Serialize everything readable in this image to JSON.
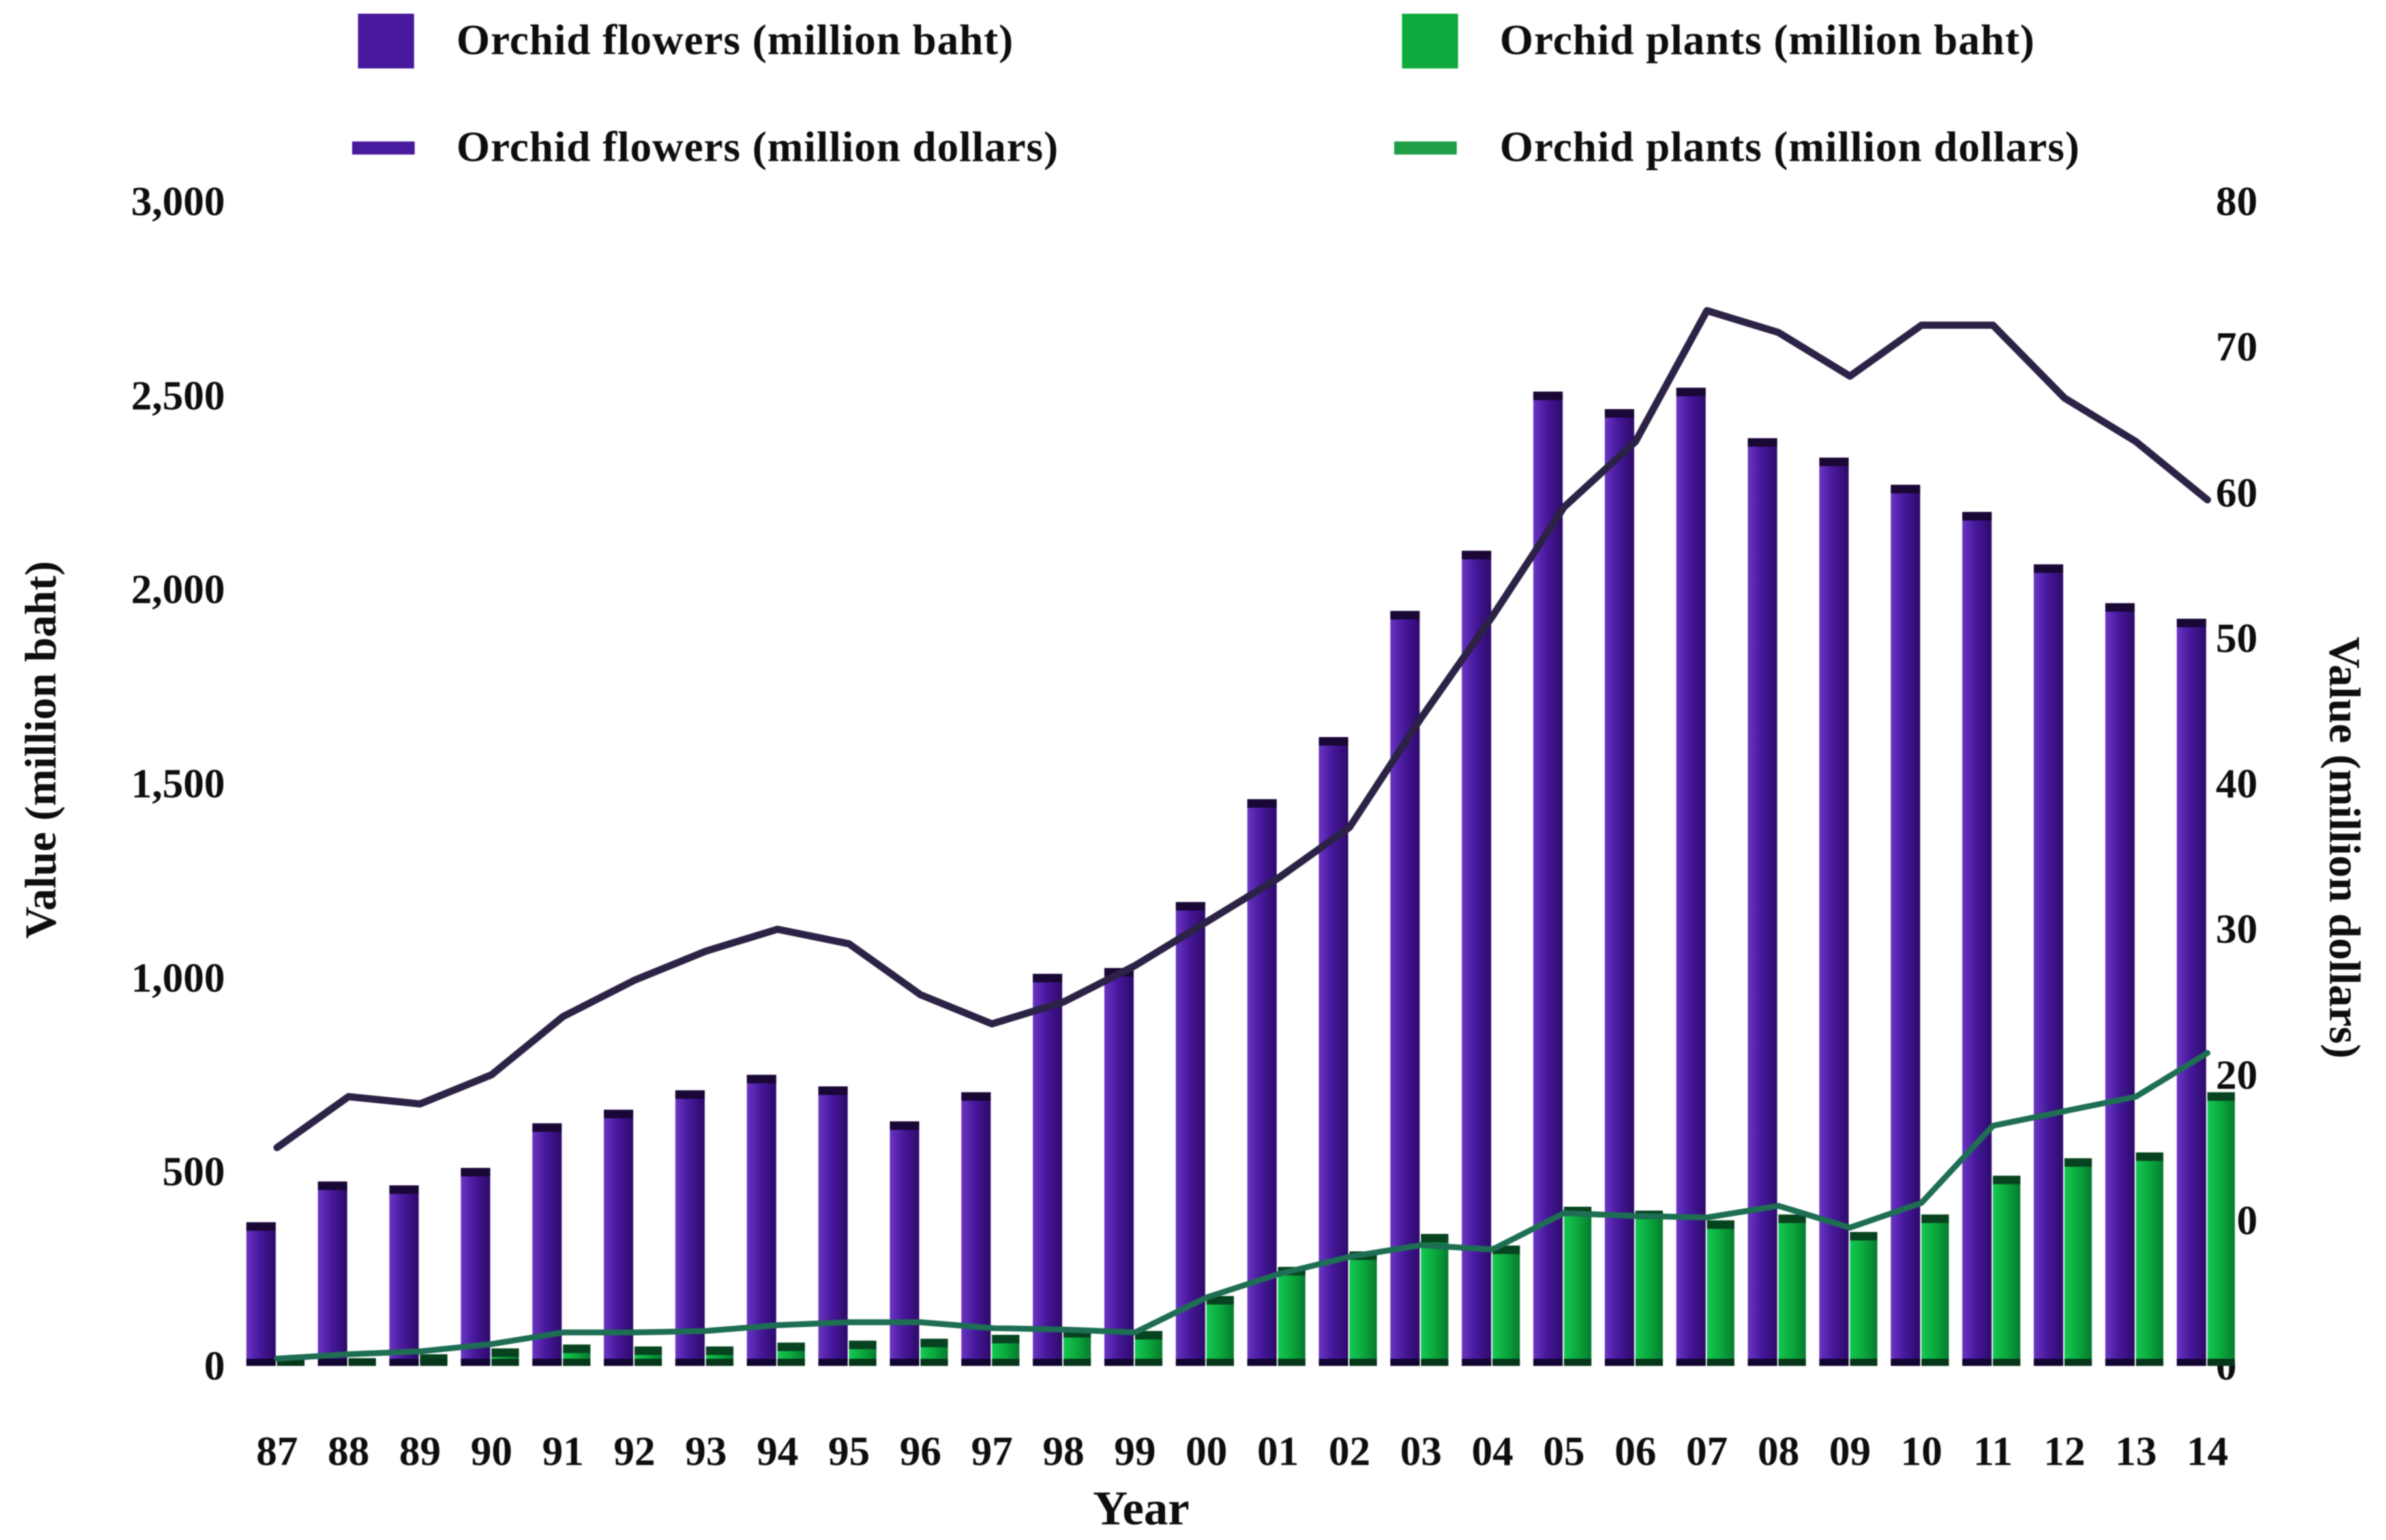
{
  "chart_data": {
    "type": "combo-bar-line",
    "title": "",
    "categories": [
      "87",
      "88",
      "89",
      "90",
      "91",
      "92",
      "93",
      "94",
      "95",
      "96",
      "97",
      "98",
      "99",
      "00",
      "01",
      "02",
      "03",
      "04",
      "05",
      "06",
      "07",
      "08",
      "09",
      "10",
      "11",
      "12",
      "13",
      "14"
    ],
    "series": [
      {
        "name": "Orchid flowers (million baht)",
        "type": "bar",
        "axis": "left",
        "color": "#47189c",
        "values": [
          370,
          475,
          465,
          510,
          625,
          660,
          710,
          750,
          720,
          630,
          705,
          1010,
          1025,
          1195,
          1460,
          1620,
          1945,
          2100,
          2510,
          2465,
          2520,
          2390,
          2340,
          2270,
          2200,
          2065,
          1965,
          1925
        ]
      },
      {
        "name": "Orchid plants (million baht)",
        "type": "bar",
        "axis": "left",
        "color": "#0dad3e",
        "values": [
          15,
          20,
          30,
          45,
          55,
          50,
          50,
          60,
          65,
          70,
          80,
          95,
          90,
          180,
          255,
          295,
          340,
          310,
          410,
          400,
          375,
          390,
          345,
          390,
          490,
          535,
          550,
          705
        ]
      },
      {
        "name": "Orchid flowers (million dollars)",
        "type": "line",
        "axis": "right",
        "color": "#2b2245",
        "values": [
          15,
          18.5,
          18,
          20,
          24,
          26.5,
          28.5,
          30,
          29,
          25.5,
          23.5,
          25,
          27.5,
          30.5,
          33.5,
          37,
          44.5,
          51.5,
          59,
          63.5,
          72.5,
          71,
          68,
          71.5,
          71.5,
          66.5,
          63.5,
          59.5
        ]
      },
      {
        "name": "Orchid plants (million dollars)",
        "type": "line",
        "axis": "right",
        "color": "#1d6e53",
        "values": [
          0.5,
          0.8,
          1,
          1.5,
          2.3,
          2.3,
          2.4,
          2.8,
          3,
          3,
          2.6,
          2.5,
          2.3,
          4.7,
          6.3,
          7.5,
          8.3,
          8,
          10.5,
          10.3,
          10.2,
          11,
          9.5,
          11.2,
          16.5,
          17.5,
          18.5,
          21.5
        ]
      }
    ],
    "left_axis": {
      "title": "Value (million baht)",
      "min": 0,
      "max": 3000,
      "ticks": [
        "3,000",
        "2,500",
        "2,000",
        "1,500",
        "1,000",
        "500",
        "0"
      ]
    },
    "right_axis": {
      "title": "Value (million dollars)",
      "min": 0,
      "max": 80,
      "ticks": [
        "80",
        "70",
        "60",
        "50",
        "40",
        "30",
        "20",
        "10",
        "0"
      ]
    },
    "x_axis": {
      "title": "Year"
    },
    "grid": false,
    "background": "#ffffff",
    "legend": {
      "position": "top",
      "items": [
        {
          "label": "Orchid flowers (million baht)",
          "swatch": "square",
          "color": "#47189c"
        },
        {
          "label": "Orchid plants (million baht)",
          "swatch": "square",
          "color": "#10ab3e"
        },
        {
          "label": "Orchid flowers (million dollars)",
          "swatch": "line",
          "color": "#471a9e"
        },
        {
          "label": "Orchid plants (million dollars)",
          "swatch": "line",
          "color": "#1f9e46"
        }
      ]
    }
  }
}
